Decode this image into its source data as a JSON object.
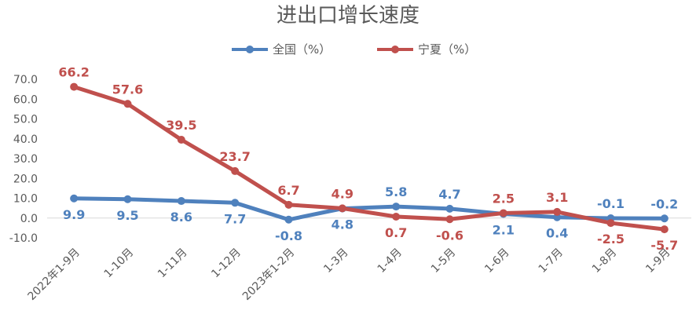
{
  "chart_data": {
    "type": "line",
    "title": "进出口增长速度",
    "categories": [
      "2022年1-9月",
      "1-10月",
      "1-11月",
      "1-12月",
      "2023年1-2月",
      "1-3月",
      "1-4月",
      "1-5月",
      "1-6月",
      "1-7月",
      "1-8月",
      "1-9月"
    ],
    "series": [
      {
        "name": "全国（%）",
        "color": "#4f81bd",
        "values": [
          9.9,
          9.5,
          8.6,
          7.7,
          -0.8,
          4.8,
          5.8,
          4.7,
          2.1,
          0.4,
          -0.1,
          -0.2
        ],
        "labels": [
          "9.9",
          "9.5",
          "8.6",
          "7.7",
          "-0.8",
          "4.8",
          "5.8",
          "4.7",
          "2.1",
          "0.4",
          "-0.1",
          "-0.2"
        ]
      },
      {
        "name": "宁夏（%）",
        "color": "#c0504d",
        "values": [
          66.2,
          57.6,
          39.5,
          23.7,
          6.7,
          4.9,
          0.7,
          -0.6,
          2.5,
          3.1,
          -2.5,
          -5.7
        ],
        "labels": [
          "66.2",
          "57.6",
          "39.5",
          "23.7",
          "6.7",
          "4.9",
          "0.7",
          "-0.6",
          "2.5",
          "3.1",
          "-2.5",
          "-5.7"
        ]
      }
    ],
    "ylim": [
      -10,
      70
    ],
    "yticks": [
      "-10.0",
      "0.0",
      "10.0",
      "20.0",
      "30.0",
      "40.0",
      "50.0",
      "60.0",
      "70.0"
    ],
    "xlabel": "",
    "ylabel": "",
    "grid": false,
    "legend": "top-center"
  }
}
